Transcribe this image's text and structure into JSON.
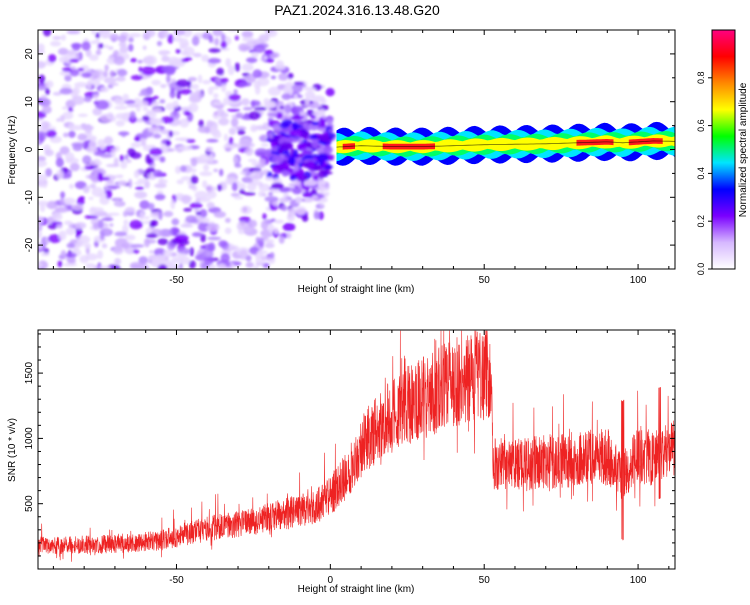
{
  "title": "PAZ1.2024.316.13.48.G20",
  "chart_data": [
    {
      "type": "heatmap",
      "xlabel": "Height of straight line (km)",
      "ylabel": "Frequency (Hz)",
      "xlim": [
        -95,
        112
      ],
      "ylim": [
        -25,
        25
      ],
      "xticks": [
        -50,
        0,
        50,
        100
      ],
      "yticks": [
        -20,
        -10,
        0,
        10,
        20
      ],
      "colorbar": {
        "label": "Normalized spectral amplitude",
        "range": [
          0,
          1
        ],
        "ticks": [
          "0.0",
          "0.2",
          "0.4",
          "0.6",
          "0.8"
        ],
        "tick_values": [
          0,
          0.2,
          0.4,
          0.6,
          0.8
        ],
        "colors": [
          "#ffffff",
          "#d6b8ff",
          "#7a00ff",
          "#0000ff",
          "#00e5ff",
          "#00ff00",
          "#ffff00",
          "#ff8800",
          "#ff0000",
          "#ff0080"
        ]
      },
      "regions": [
        {
          "x_range": [
            -95,
            -20
          ],
          "y_range": [
            -25,
            25
          ],
          "description_level": 0.12
        },
        {
          "x_range": [
            -20,
            0
          ],
          "y_range": [
            -12,
            12
          ],
          "description_level": 0.15
        },
        {
          "x_range": [
            2,
            112
          ],
          "y_range": [
            -1,
            2
          ],
          "description_level": 0.85
        }
      ],
      "ridge": {
        "x": [
          2,
          10,
          20,
          30,
          40,
          50,
          60,
          70,
          80,
          90,
          95,
          100,
          105,
          112
        ],
        "y": [
          0.5,
          0.8,
          0.6,
          0.6,
          0.8,
          1.0,
          1.1,
          1.2,
          1.4,
          1.6,
          1.4,
          1.6,
          1.8,
          1.7
        ]
      }
    },
    {
      "type": "line",
      "xlabel": "Height of straight line (km)",
      "ylabel": "SNR (10 * v/v)",
      "xlim": [
        -95,
        112
      ],
      "ylim": [
        0,
        1830
      ],
      "xticks": [
        -50,
        0,
        50,
        100
      ],
      "yticks": [
        500,
        1000,
        1500
      ],
      "color": "#ee2222",
      "series": [
        {
          "x": [
            -95,
            -85,
            -75,
            -65,
            -55,
            -45,
            -35,
            -25,
            -15,
            -5,
            0,
            5,
            8,
            12,
            18,
            25,
            32,
            40,
            48,
            52,
            53,
            60,
            70,
            80,
            90,
            95,
            100,
            105,
            112
          ],
          "y": [
            180,
            180,
            190,
            200,
            220,
            280,
            330,
            360,
            420,
            470,
            560,
            700,
            850,
            1000,
            1130,
            1250,
            1340,
            1420,
            1490,
            1510,
            800,
            790,
            820,
            840,
            860,
            700,
            880,
            850,
            920
          ]
        }
      ]
    }
  ]
}
